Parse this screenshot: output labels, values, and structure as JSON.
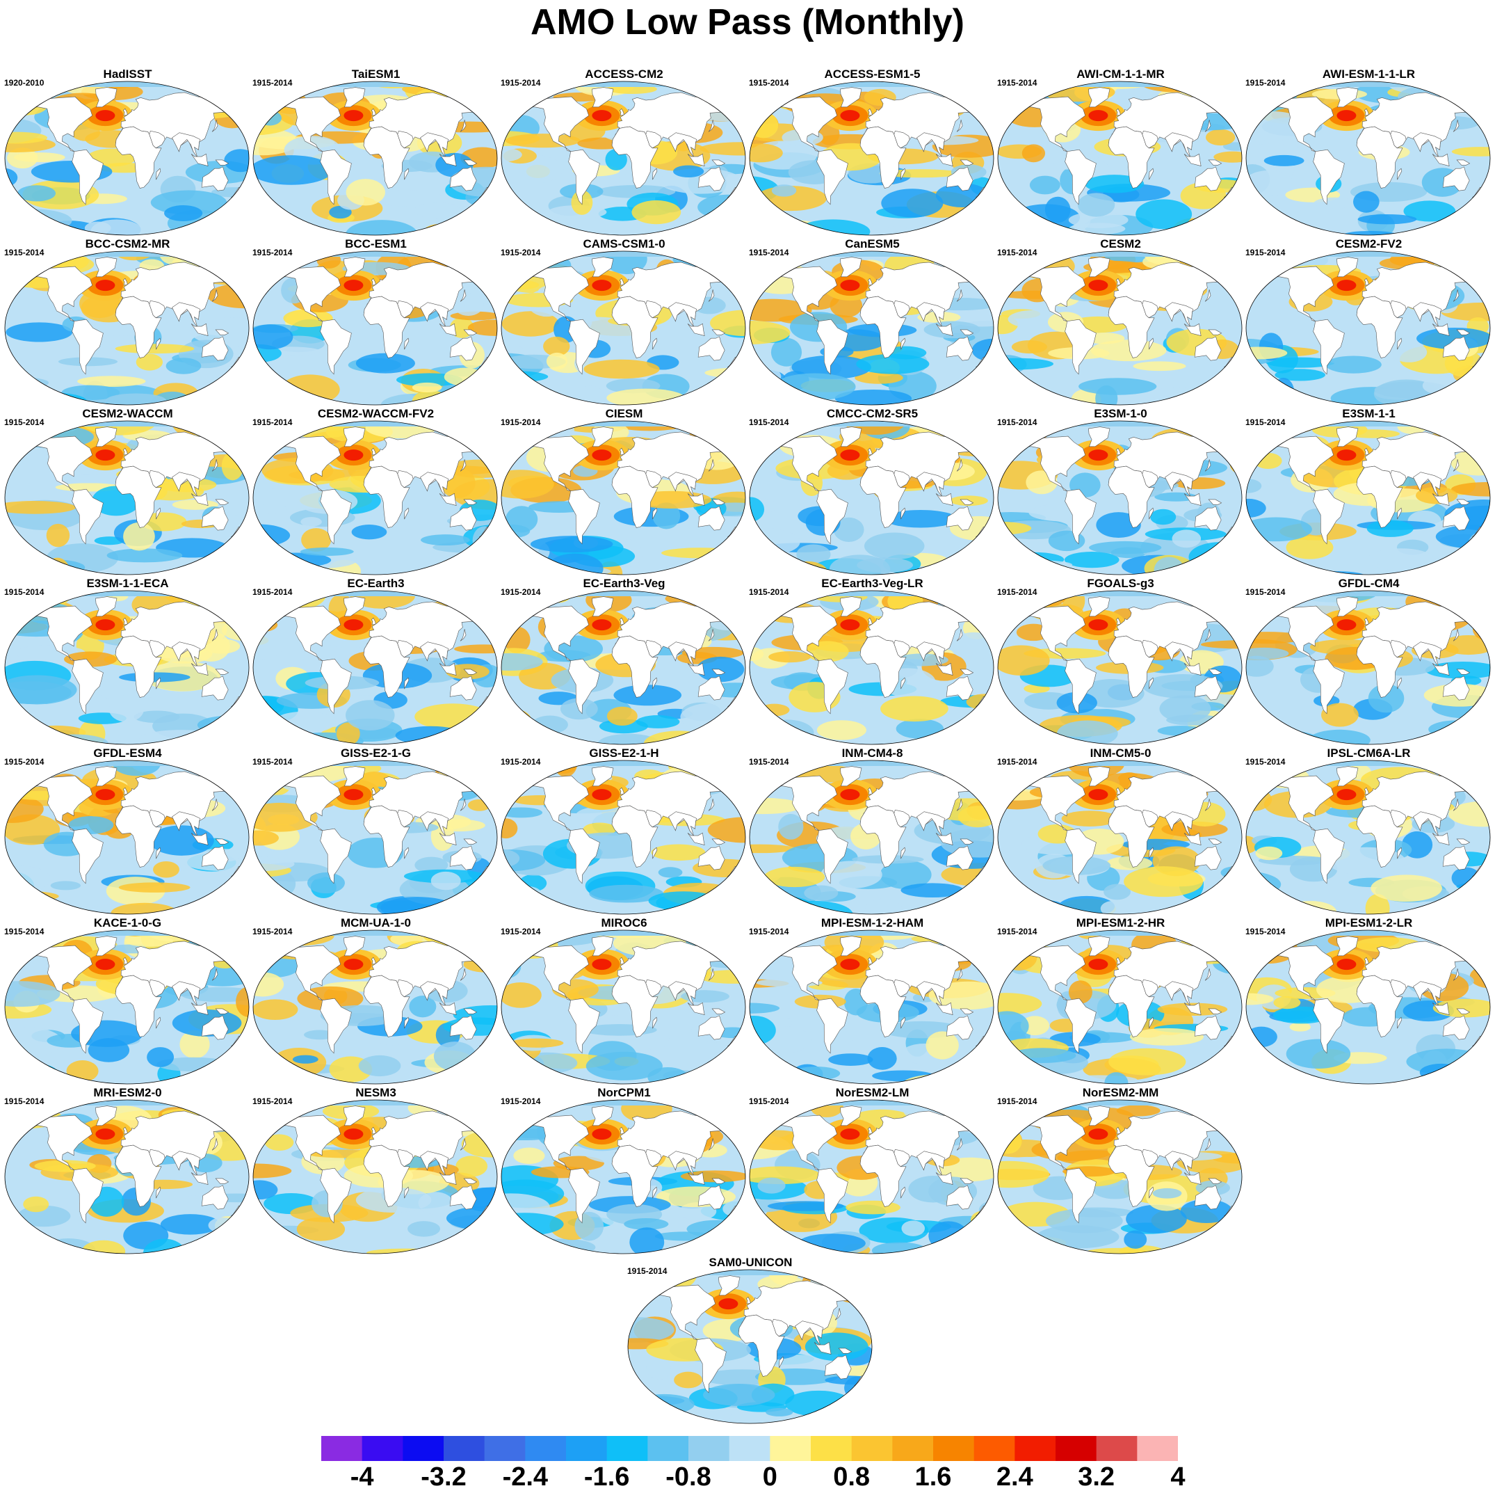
{
  "title": "AMO Low Pass (Monthly)",
  "panels": [
    {
      "name": "HadISST",
      "period": "1920-2010"
    },
    {
      "name": "TaiESM1",
      "period": "1915-2014"
    },
    {
      "name": "ACCESS-CM2",
      "period": "1915-2014"
    },
    {
      "name": "ACCESS-ESM1-5",
      "period": "1915-2014"
    },
    {
      "name": "AWI-CM-1-1-MR",
      "period": "1915-2014"
    },
    {
      "name": "AWI-ESM-1-1-LR",
      "period": "1915-2014"
    },
    {
      "name": "BCC-CSM2-MR",
      "period": "1915-2014"
    },
    {
      "name": "BCC-ESM1",
      "period": "1915-2014"
    },
    {
      "name": "CAMS-CSM1-0",
      "period": "1915-2014"
    },
    {
      "name": "CanESM5",
      "period": "1915-2014"
    },
    {
      "name": "CESM2",
      "period": "1915-2014"
    },
    {
      "name": "CESM2-FV2",
      "period": "1915-2014"
    },
    {
      "name": "CESM2-WACCM",
      "period": "1915-2014"
    },
    {
      "name": "CESM2-WACCM-FV2",
      "period": "1915-2014"
    },
    {
      "name": "CIESM",
      "period": "1915-2014"
    },
    {
      "name": "CMCC-CM2-SR5",
      "period": "1915-2014"
    },
    {
      "name": "E3SM-1-0",
      "period": "1915-2014"
    },
    {
      "name": "E3SM-1-1",
      "period": "1915-2014"
    },
    {
      "name": "E3SM-1-1-ECA",
      "period": "1915-2014"
    },
    {
      "name": "EC-Earth3",
      "period": "1915-2014"
    },
    {
      "name": "EC-Earth3-Veg",
      "period": "1915-2014"
    },
    {
      "name": "EC-Earth3-Veg-LR",
      "period": "1915-2014"
    },
    {
      "name": "FGOALS-g3",
      "period": "1915-2014"
    },
    {
      "name": "GFDL-CM4",
      "period": "1915-2014"
    },
    {
      "name": "GFDL-ESM4",
      "period": "1915-2014"
    },
    {
      "name": "GISS-E2-1-G",
      "period": "1915-2014"
    },
    {
      "name": "GISS-E2-1-H",
      "period": "1915-2014"
    },
    {
      "name": "INM-CM4-8",
      "period": "1915-2014"
    },
    {
      "name": "INM-CM5-0",
      "period": "1915-2014"
    },
    {
      "name": "IPSL-CM6A-LR",
      "period": "1915-2014"
    },
    {
      "name": "KACE-1-0-G",
      "period": "1915-2014"
    },
    {
      "name": "MCM-UA-1-0",
      "period": "1915-2014"
    },
    {
      "name": "MIROC6",
      "period": "1915-2014"
    },
    {
      "name": "MPI-ESM-1-2-HAM",
      "period": "1915-2014"
    },
    {
      "name": "MPI-ESM1-2-HR",
      "period": "1915-2014"
    },
    {
      "name": "MPI-ESM1-2-LR",
      "period": "1915-2014"
    },
    {
      "name": "MRI-ESM2-0",
      "period": "1915-2014"
    },
    {
      "name": "NESM3",
      "period": "1915-2014"
    },
    {
      "name": "NorCPM1",
      "period": "1915-2014"
    },
    {
      "name": "NorESM2-LM",
      "period": "1915-2014"
    },
    {
      "name": "NorESM2-MM",
      "period": "1915-2014"
    },
    {
      "name": "SAM0-UNICON",
      "period": "1915-2014"
    }
  ],
  "colorbar": {
    "colors": [
      "#8a2be2",
      "#3a0cf2",
      "#0c0cf2",
      "#2e4fe0",
      "#3f6fe6",
      "#2f8af2",
      "#1da0f5",
      "#0fbff8",
      "#5cc1f0",
      "#93cfef",
      "#bde1f6",
      "#fff59a",
      "#fde047",
      "#fbc531",
      "#f8a81a",
      "#f78400",
      "#fd5b00",
      "#f21d00",
      "#d60000",
      "#dd4a4a",
      "#fbb4b4"
    ],
    "labels": [
      "-4",
      "-3.2",
      "-2.4",
      "-1.6",
      "-0.8",
      "0",
      "0.8",
      "1.6",
      "2.4",
      "3.2",
      "4"
    ]
  }
}
